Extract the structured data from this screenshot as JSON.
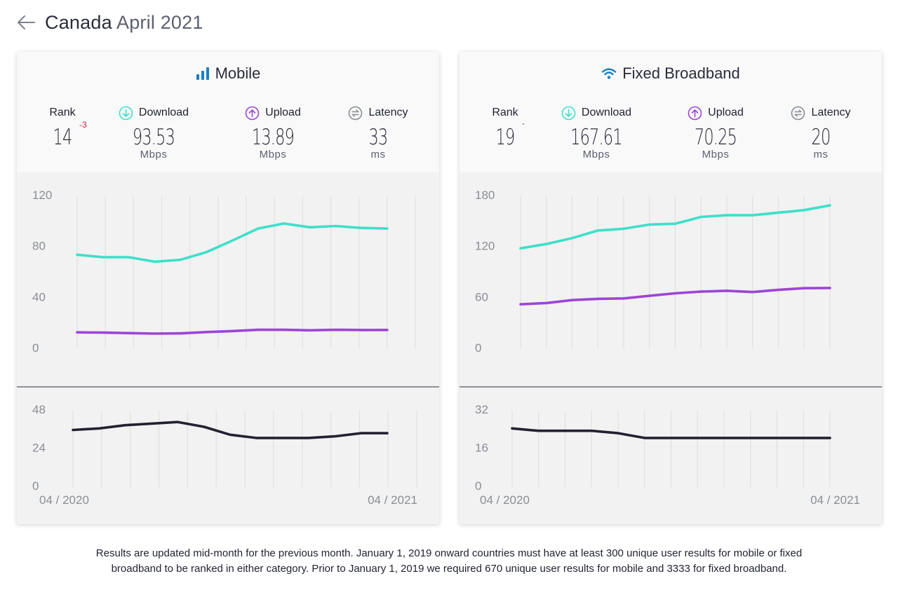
{
  "page": {
    "country": "Canada",
    "period": "April 2021",
    "footnote_line1": "Results are updated mid-month for the previous month. January 1, 2019 onward countries must have at least 300 unique user results for mobile or fixed",
    "footnote_line2": "broadband to be ranked in either category. Prior to January 1, 2019 we required 670 unique user results for mobile and 3333 for fixed broadband."
  },
  "colors": {
    "download": "#3de0c9",
    "upload": "#9d45d6",
    "latency": "#21222f",
    "mobile_icon": "#1a7fc1",
    "wifi_icon": "#1a7fc1",
    "rank_change": "#c7273d"
  },
  "mobile": {
    "title": "Mobile",
    "icon": "signal-bars-icon",
    "rank_label": "Rank",
    "rank": "14",
    "rank_change": "-3",
    "download_label": "Download",
    "download": "93.53",
    "download_unit": "Mbps",
    "upload_label": "Upload",
    "upload": "13.89",
    "upload_unit": "Mbps",
    "latency_label": "Latency",
    "latency": "33",
    "latency_unit": "ms",
    "x_start": "04 / 2020",
    "x_end": "04 / 2021"
  },
  "fixed": {
    "title": "Fixed Broadband",
    "icon": "wifi-icon",
    "rank_label": "Rank",
    "rank": "19",
    "rank_change": "-",
    "download_label": "Download",
    "download": "167.61",
    "download_unit": "Mbps",
    "upload_label": "Upload",
    "upload": "70.25",
    "upload_unit": "Mbps",
    "latency_label": "Latency",
    "latency": "20",
    "latency_unit": "ms",
    "x_start": "04 / 2020",
    "x_end": "04 / 2021"
  },
  "chart_data": [
    {
      "type": "line",
      "panel": "mobile-speed",
      "x": [
        "04/2020",
        "05/2020",
        "06/2020",
        "07/2020",
        "08/2020",
        "09/2020",
        "10/2020",
        "11/2020",
        "12/2020",
        "01/2021",
        "02/2021",
        "03/2021",
        "04/2021"
      ],
      "yticks": [
        0,
        40,
        80,
        120
      ],
      "ylim": [
        0,
        120
      ],
      "series": [
        {
          "name": "Download",
          "values": [
            73,
            71,
            71,
            67.5,
            69,
            75,
            84,
            93.5,
            97.5,
            94.5,
            95.5,
            94,
            93.53
          ]
        },
        {
          "name": "Upload",
          "values": [
            12,
            11.8,
            11.4,
            11,
            11.2,
            12.2,
            13,
            14,
            14,
            13.6,
            14,
            13.8,
            13.89
          ]
        }
      ]
    },
    {
      "type": "line",
      "panel": "mobile-latency",
      "x": [
        "04/2020",
        "05/2020",
        "06/2020",
        "07/2020",
        "08/2020",
        "09/2020",
        "10/2020",
        "11/2020",
        "12/2020",
        "01/2021",
        "02/2021",
        "03/2021",
        "04/2021"
      ],
      "yticks": [
        0,
        24,
        48
      ],
      "ylim": [
        0,
        48
      ],
      "series": [
        {
          "name": "Latency",
          "values": [
            35,
            36,
            38,
            39,
            40,
            37,
            32,
            30,
            30,
            30,
            31,
            33,
            33
          ]
        }
      ]
    },
    {
      "type": "line",
      "panel": "fixed-speed",
      "x": [
        "04/2020",
        "05/2020",
        "06/2020",
        "07/2020",
        "08/2020",
        "09/2020",
        "10/2020",
        "11/2020",
        "12/2020",
        "01/2021",
        "02/2021",
        "03/2021",
        "04/2021"
      ],
      "yticks": [
        0,
        60,
        120,
        180
      ],
      "ylim": [
        0,
        180
      ],
      "series": [
        {
          "name": "Download",
          "values": [
            117,
            122,
            129,
            138,
            140,
            145,
            146,
            154,
            156,
            156,
            159,
            162,
            167.61
          ]
        },
        {
          "name": "Upload",
          "values": [
            51,
            52.5,
            56,
            57.5,
            58,
            61,
            64,
            66,
            67,
            65.5,
            68,
            70,
            70.25
          ]
        }
      ]
    },
    {
      "type": "line",
      "panel": "fixed-latency",
      "x": [
        "04/2020",
        "05/2020",
        "06/2020",
        "07/2020",
        "08/2020",
        "09/2020",
        "10/2020",
        "11/2020",
        "12/2020",
        "01/2021",
        "02/2021",
        "03/2021",
        "04/2021"
      ],
      "yticks": [
        0,
        16,
        32
      ],
      "ylim": [
        0,
        32
      ],
      "series": [
        {
          "name": "Latency",
          "values": [
            24,
            23,
            23,
            23,
            22,
            20,
            20,
            20,
            20,
            20,
            20,
            20,
            20
          ]
        }
      ]
    }
  ]
}
